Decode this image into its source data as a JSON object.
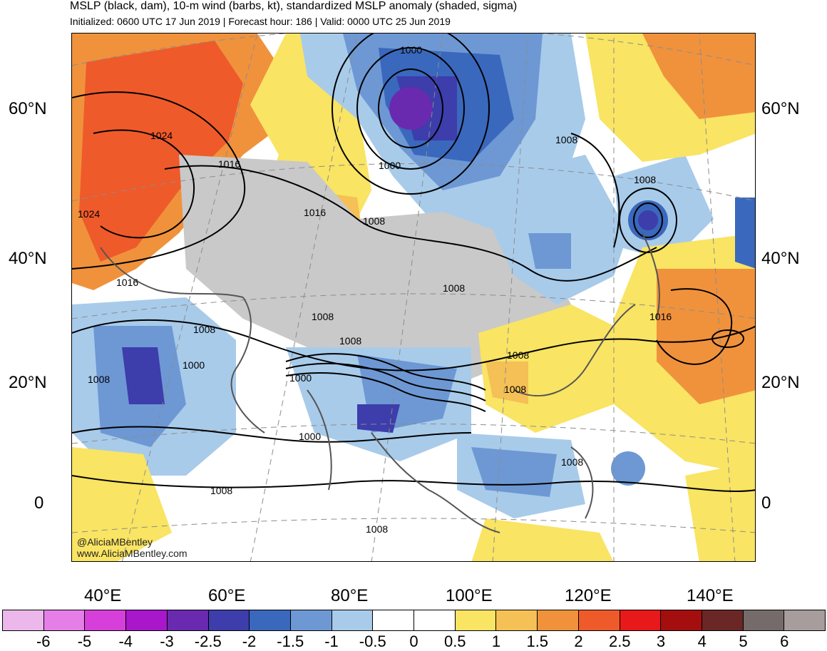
{
  "title": "MSLP (black, dam), 10-m wind (barbs, kt), standardized MSLP anomaly (shaded, sigma)",
  "subtitle": "Initialized: 0600 UTC 17 Jun 2019 | Forecast hour: 186 | Valid: 0000 UTC 25 Jun 2019",
  "credits": {
    "handle": "@AliciaMBentley",
    "website": "www.AliciaMBentley.com"
  },
  "lat_labels": [
    "60°N",
    "40°N",
    "20°N",
    "0"
  ],
  "lon_labels": [
    "40°E",
    "60°E",
    "80°E",
    "100°E",
    "120°E",
    "140°E"
  ],
  "contour_labels": [
    "1000",
    "1008",
    "1016",
    "1024"
  ],
  "colorbar": {
    "labels": [
      "-6",
      "-5",
      "-4",
      "-3",
      "-2.5",
      "-2",
      "-1.5",
      "-1",
      "-0.5",
      "0",
      "0.5",
      "1",
      "1.5",
      "2",
      "2.5",
      "3",
      "4",
      "5",
      "6"
    ],
    "colors": [
      "#ecb8ec",
      "#e67ee8",
      "#d63fd9",
      "#a817c9",
      "#6a2ab0",
      "#3d3dab",
      "#3a68bd",
      "#6d98d4",
      "#a8cbea",
      "#ffffff",
      "#ffffff",
      "#f9e463",
      "#f5c055",
      "#f0923c",
      "#ef5a2a",
      "#e8191a",
      "#a50e0e",
      "#6a2725",
      "#746b6a",
      "#a89d9d"
    ]
  }
}
